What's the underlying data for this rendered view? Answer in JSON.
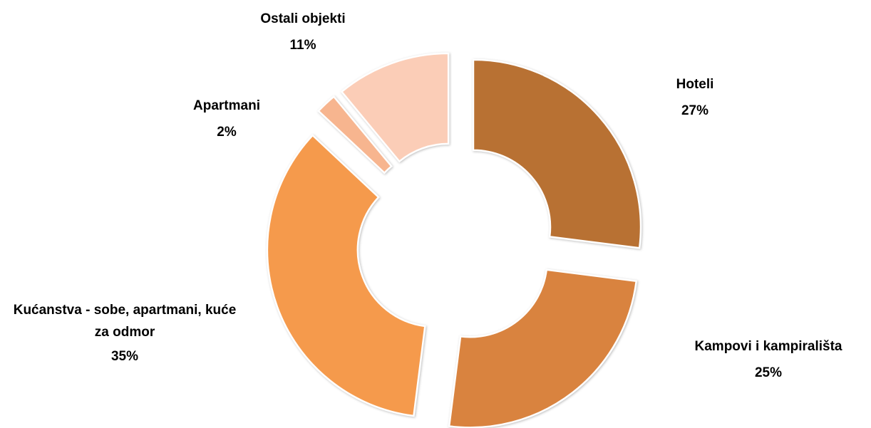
{
  "chart_data": {
    "type": "donut",
    "categories": [
      "Hoteli",
      "Kampovi i kampirališta",
      "Kućanstva - sobe, apartmani, kuće za odmor",
      "Apartmani",
      "Ostali objekti"
    ],
    "values": [
      27,
      25,
      35,
      2,
      11
    ],
    "value_labels": [
      "27%",
      "25%",
      "35%",
      "2%",
      "11%"
    ],
    "colors": [
      "#b87133",
      "#d9833f",
      "#f59a4c",
      "#f7b58f",
      "#fbcdb7"
    ]
  }
}
